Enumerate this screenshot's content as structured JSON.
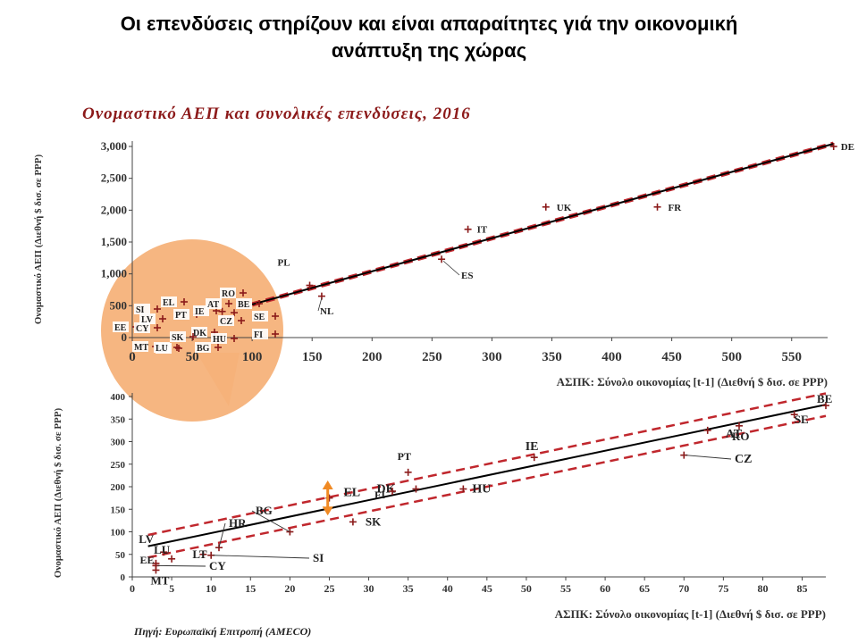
{
  "slide": {
    "title_line1": "Οι επενδύσεις στηρίζουν και είναι απαραίτητες γιά την οικονομική",
    "title_line2": "ανάπτυξη της χώρας",
    "source": "Πηγή: Ευρωπαϊκή Επιτροπή (AMECO)"
  },
  "colors": {
    "title_red": "#8c1a1a",
    "trend_line": "#000000",
    "band_dashed": "#c0272d",
    "marker": "#8b1a1a",
    "zoom_circle": "#f5b27a",
    "arrow_orange": "#f08a24"
  },
  "chart_data": [
    {
      "type": "scatter",
      "title": "Ονομαστικό ΑΕΠ και συνολικές επενδύσεις, 2016",
      "xlabel": "ΑΣΠΚ: Σύνολο οικονομίας [t-1] (Διεθνή $ δισ. σε PPP)",
      "ylabel": "Ονομαστικό ΑΕΠ (Διεθνή $ δισ. σε PPP)",
      "xlim": [
        0,
        580
      ],
      "ylim": [
        0,
        3000
      ],
      "x_ticks": [
        "0",
        "50",
        "100",
        "150",
        "200",
        "250",
        "300",
        "350",
        "400",
        "450",
        "500",
        "550"
      ],
      "y_ticks": [
        "0",
        "500",
        "1,000",
        "1,500",
        "2,000",
        "2,500",
        "3,000"
      ],
      "points": [
        {
          "label": "DE",
          "x": 585,
          "y": 3000
        },
        {
          "label": "UK",
          "x": 345,
          "y": 2050
        },
        {
          "label": "FR",
          "x": 438,
          "y": 2050
        },
        {
          "label": "IT",
          "x": 280,
          "y": 1700
        },
        {
          "label": "ES",
          "x": 258,
          "y": 1230
        },
        {
          "label": "PL",
          "x": 148,
          "y": 820
        },
        {
          "label": "NL",
          "x": 158,
          "y": 650
        },
        {
          "label": "SE",
          "x": 85,
          "y": 390
        },
        {
          "label": "FI",
          "x": 77,
          "y": 270
        },
        {
          "label": "AT",
          "x": 75,
          "y": 410
        }
      ],
      "labels_zoom": [
        "SI",
        "EL",
        "EE",
        "LV",
        "CY",
        "MT",
        "LT",
        "PT",
        "IE",
        "AT",
        "RO",
        "CZ",
        "DK",
        "SK",
        "HU",
        "BG",
        "LU",
        "BE",
        "SE",
        "FI",
        "NL",
        "PL",
        "HR"
      ],
      "grid": false
    },
    {
      "type": "scatter",
      "xlabel": "ΑΣΠΚ: Σύνολο οικονομίας [t-1] (Διεθνή $ δισ. σε PPP)",
      "ylabel": "Ονομαστικό ΑΕΠ (Διεθνή $ δισ. σε PPP)",
      "xlim": [
        0,
        88
      ],
      "ylim": [
        0,
        400
      ],
      "x_ticks": [
        "0",
        "5",
        "10",
        "15",
        "20",
        "25",
        "30",
        "35",
        "40",
        "45",
        "50",
        "55",
        "60",
        "65",
        "70",
        "75",
        "80",
        "85"
      ],
      "y_ticks": [
        "0",
        "50",
        "100",
        "150",
        "200",
        "250",
        "300",
        "350",
        "400"
      ],
      "trend": {
        "x0": 2,
        "y0": 68,
        "x1": 88,
        "y1": 382
      },
      "band_offset": 25,
      "points": [
        {
          "label": "BE",
          "x": 88,
          "y": 380
        },
        {
          "label": "SE",
          "x": 84,
          "y": 360
        },
        {
          "label": "RO",
          "x": 77,
          "y": 335
        },
        {
          "label": "AT",
          "x": 73,
          "y": 325
        },
        {
          "label": "CZ",
          "x": 70,
          "y": 270
        },
        {
          "label": "IE",
          "x": 51,
          "y": 265
        },
        {
          "label": "HU",
          "x": 42,
          "y": 195
        },
        {
          "label": "DK",
          "x": 36,
          "y": 195
        },
        {
          "label": "PT",
          "x": 35,
          "y": 232
        },
        {
          "label": "FI",
          "x": 33,
          "y": 190
        },
        {
          "label": "EL",
          "x": 25,
          "y": 175
        },
        {
          "label": "SK",
          "x": 28,
          "y": 122
        },
        {
          "label": "BG",
          "x": 20,
          "y": 100
        },
        {
          "label": "SI",
          "x": 10,
          "y": 48
        },
        {
          "label": "LT",
          "x": 9,
          "y": 50
        },
        {
          "label": "HR",
          "x": 11,
          "y": 65
        },
        {
          "label": "LV",
          "x": 4,
          "y": 55
        },
        {
          "label": "LU",
          "x": 5,
          "y": 40
        },
        {
          "label": "EE",
          "x": 3,
          "y": 30
        },
        {
          "label": "CY",
          "x": 3,
          "y": 25
        },
        {
          "label": "MT",
          "x": 3,
          "y": 15
        }
      ],
      "grid": false
    }
  ]
}
